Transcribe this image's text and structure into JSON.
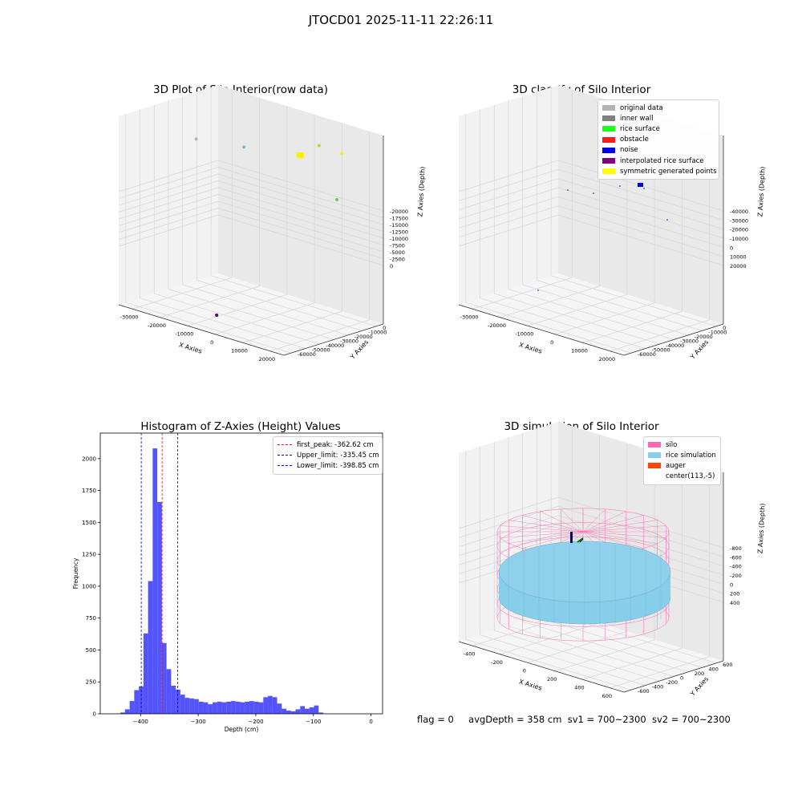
{
  "page": {
    "title": "JTOCD01 2025-11-11 22:26:11"
  },
  "colors": {
    "original": "#b3b3b3",
    "inner_wall": "#808080",
    "rice_surface": "#1aff1a",
    "obstacle": "#ff1a1a",
    "noise": "#0000ee",
    "interpolated": "#800080",
    "symmetric": "#ffff00",
    "silo": "#ff69b4",
    "rice_sim": "#87ceeb",
    "auger": "#ff4500",
    "hist_bar": "#4b4bff"
  },
  "chart_data": [
    {
      "type": "scatter3d",
      "title": "3D Plot of Silo Interior(row data)",
      "xlabel": "X Axies",
      "ylabel": "Y Axies",
      "zlabel": "Z Axies (Depth)",
      "x_ticks": [
        "-30000",
        "-20000",
        "-10000",
        "0",
        "10000",
        "20000"
      ],
      "y_ticks": [
        "0",
        "-10000",
        "-20000",
        "-30000",
        "-40000",
        "-50000",
        "-60000"
      ],
      "z_ticks": [
        "0",
        "-2500",
        "-5000",
        "-7500",
        "-10000",
        "-12500",
        "-15000",
        "-17500",
        "-20000"
      ],
      "points": [
        {
          "x": -28000,
          "y": -20000,
          "z": -2000,
          "color": "#b3b3b3"
        },
        {
          "x": -20000,
          "y": -5000,
          "z": -3000,
          "color": "#7fb3d5"
        },
        {
          "x": 2000,
          "y": 0,
          "z": -500,
          "color": "#a6d854"
        },
        {
          "x": 12000,
          "y": -5000,
          "z": 0,
          "color": "#ffee00"
        },
        {
          "x": 19000,
          "y": -22000,
          "z": -4000,
          "color": "#66cc66"
        },
        {
          "x": -2000,
          "y": -58000,
          "z": -19000,
          "color": "#4b0082"
        }
      ]
    },
    {
      "type": "scatter3d",
      "title": "3D classify of Silo Interior",
      "xlabel": "X Axies",
      "ylabel": "Y Axies",
      "zlabel": "Z Axies (Depth)",
      "x_ticks": [
        "-30000",
        "-20000",
        "-10000",
        "0",
        "10000",
        "20000"
      ],
      "y_ticks": [
        "0",
        "-10000",
        "-20000",
        "-30000",
        "-40000",
        "-50000",
        "-60000"
      ],
      "z_ticks": [
        "20000",
        "10000",
        "0",
        "-10000",
        "-20000",
        "-30000",
        "-40000"
      ],
      "legend": [
        "original data",
        "inner wall",
        "rice surface",
        "obstacle",
        "noise",
        "interpolated rice surface",
        "symmetric generated points"
      ]
    },
    {
      "type": "histogram",
      "title": "Histogram of Z-Axies (Height) Values",
      "xlabel": "Depth (cm)",
      "ylabel": "Frequency",
      "xlim": [
        -470,
        20
      ],
      "ylim": [
        0,
        2200
      ],
      "x_ticks": [
        -400,
        -300,
        -200,
        -100,
        0
      ],
      "y_ticks": [
        0,
        250,
        500,
        750,
        1000,
        1250,
        1500,
        1750,
        2000
      ],
      "bin_start": -435,
      "bin_width": 8,
      "values": [
        10,
        35,
        100,
        185,
        215,
        630,
        1040,
        2080,
        1660,
        555,
        350,
        220,
        190,
        150,
        125,
        120,
        115,
        95,
        90,
        75,
        90,
        95,
        90,
        95,
        100,
        95,
        90,
        95,
        100,
        95,
        90,
        130,
        140,
        130,
        80,
        40,
        25,
        20,
        35,
        60,
        40,
        50,
        65,
        10
      ],
      "lines": [
        {
          "label": "first_peak: -362.62 cm",
          "value": -362.62,
          "color": "#e31a1c"
        },
        {
          "label": "Upper_limit: -335.45 cm",
          "value": -335.45,
          "color": "#0000cc"
        },
        {
          "label": "Lower_limit: -398.85 cm",
          "value": -398.85,
          "color": "#0000cc"
        }
      ]
    },
    {
      "type": "surface3d",
      "title": "3D simulation of Silo Interior",
      "xlabel": "X Axies",
      "ylabel": "Y Axies",
      "zlabel": "Z Axies (Depth)",
      "x_ticks": [
        "-400",
        "-200",
        "0",
        "200",
        "400",
        "600"
      ],
      "y_ticks": [
        "600",
        "400",
        "200",
        "0",
        "-200",
        "-400",
        "-600"
      ],
      "z_ticks": [
        "400",
        "200",
        "0",
        "-200",
        "-400",
        "-600",
        "-800"
      ],
      "legend": [
        "silo",
        "rice simulation",
        "auger",
        "center(113,-5)"
      ]
    }
  ],
  "footer": {
    "flag": "flag = 0",
    "avg": "avgDepth = 358 cm",
    "sv1": "sv1 = 700~2300",
    "sv2": "sv2 = 700~2300"
  }
}
